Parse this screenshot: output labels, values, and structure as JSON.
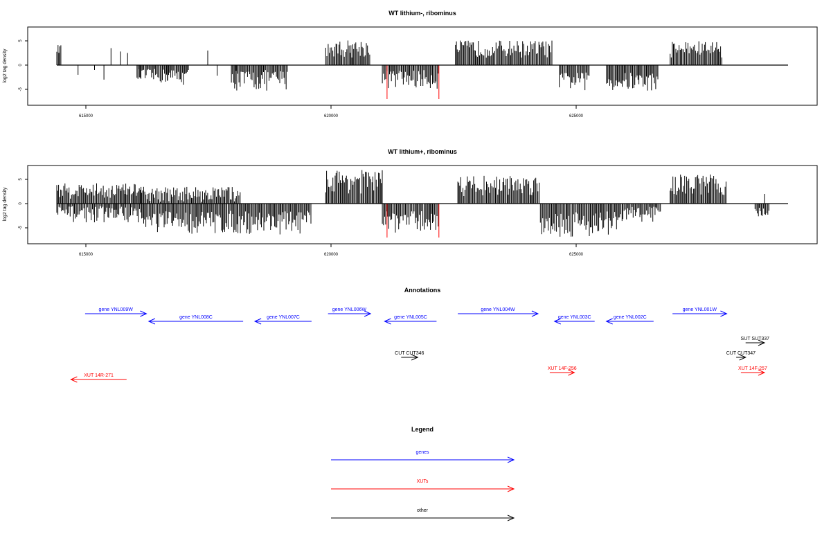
{
  "chart_data": [
    {
      "type": "bar",
      "title": "WT lithium-, ribominus",
      "ylabel": "log2 tag density",
      "xlim": [
        614300,
        629800
      ],
      "ylim": [
        -7.5,
        7.5
      ],
      "x_ticks": [
        615000,
        620000,
        625000
      ],
      "x_tick_labels": [
        "615000",
        "620000",
        "625000"
      ],
      "y_ticks": [
        -5,
        0,
        5
      ],
      "y_tick_labels": [
        "-5",
        "0",
        "5"
      ],
      "clusters": [
        {
          "from": 614300,
          "to": 614400,
          "min": 2.5,
          "max": 4.2,
          "sign": 1
        },
        {
          "from": 616000,
          "to": 616650,
          "min": -3.9,
          "max": -0.8,
          "sign": -1
        },
        {
          "from": 616650,
          "to": 617100,
          "min": -4.2,
          "max": -0.8,
          "sign": -1
        },
        {
          "from": 618000,
          "to": 619200,
          "min": -5.5,
          "max": -1.0,
          "sign": -1
        },
        {
          "from": 620000,
          "to": 620950,
          "min": 1.5,
          "max": 5.2,
          "sign": 1
        },
        {
          "from": 621200,
          "to": 622400,
          "min": -5.0,
          "max": -1.0,
          "sign": -1
        },
        {
          "from": 622750,
          "to": 624800,
          "min": 1.5,
          "max": 5.1,
          "sign": 1
        },
        {
          "from": 624950,
          "to": 625600,
          "min": -5.2,
          "max": -1.5,
          "sign": -1
        },
        {
          "from": 625950,
          "to": 627050,
          "min": -5.6,
          "max": -1.5,
          "sign": -1
        },
        {
          "from": 627300,
          "to": 628400,
          "min": 1.5,
          "max": 5.0,
          "sign": 1
        }
      ],
      "sparse_bars": [
        [
          614750,
          -2.0
        ],
        [
          615100,
          -1.0
        ],
        [
          615300,
          -3.0
        ],
        [
          615450,
          3.5
        ],
        [
          615650,
          2.8
        ],
        [
          615800,
          2.5
        ],
        [
          616050,
          -2.5
        ],
        [
          617500,
          3.0
        ],
        [
          617700,
          -2.2
        ],
        [
          618100,
          -1.2
        ]
      ],
      "highlights": [
        {
          "x": 621300,
          "y": -7.0
        },
        {
          "x": 622400,
          "y": -7.0
        }
      ],
      "highlight_color": "#ff0000"
    },
    {
      "type": "bar",
      "title": "WT lithium+, ribominus",
      "ylabel": "log2 tag density",
      "xlim": [
        614300,
        629800
      ],
      "ylim": [
        -7.5,
        7.5
      ],
      "x_ticks": [
        615000,
        620000,
        625000
      ],
      "x_tick_labels": [
        "615000",
        "620000",
        "625000"
      ],
      "y_ticks": [
        -5,
        0,
        5
      ],
      "y_tick_labels": [
        "-5",
        "0",
        "5"
      ],
      "clusters": [
        {
          "from": 614300,
          "to": 616100,
          "min": 1.0,
          "max": 4.2,
          "sign": 1
        },
        {
          "from": 614300,
          "to": 616100,
          "min": -4.0,
          "max": -0.5,
          "sign": -1
        },
        {
          "from": 616100,
          "to": 619700,
          "min": -6.5,
          "max": -1.5,
          "sign": -1
        },
        {
          "from": 616100,
          "to": 618200,
          "min": 0.3,
          "max": 3.5,
          "sign": 1
        },
        {
          "from": 620000,
          "to": 621200,
          "min": 2.0,
          "max": 7.0,
          "sign": 1
        },
        {
          "from": 621200,
          "to": 622400,
          "min": -6.0,
          "max": -1.5,
          "sign": -1
        },
        {
          "from": 622800,
          "to": 624550,
          "min": 1.5,
          "max": 5.8,
          "sign": 1
        },
        {
          "from": 624550,
          "to": 626300,
          "min": -7.0,
          "max": -1.5,
          "sign": -1
        },
        {
          "from": 626300,
          "to": 627100,
          "min": -4.0,
          "max": -0.5,
          "sign": -1
        },
        {
          "from": 627300,
          "to": 628500,
          "min": 1.5,
          "max": 6.0,
          "sign": 1
        },
        {
          "from": 629100,
          "to": 629400,
          "min": -3.0,
          "max": -0.8,
          "sign": -1
        }
      ],
      "sparse_bars": [
        [
          629300,
          2.0
        ]
      ],
      "highlights": [
        {
          "x": 621300,
          "y": -7.0
        },
        {
          "x": 622400,
          "y": -7.0
        }
      ],
      "highlight_color": "#ff0000"
    }
  ],
  "annotations": {
    "title": "Annotations",
    "items": [
      {
        "label": "gene YNL009W",
        "color": "#0000ff",
        "row": 0,
        "from": 614900,
        "to": 616200,
        "dir": "right"
      },
      {
        "label": "gene YNL008C",
        "color": "#0000ff",
        "row": 1,
        "from": 616250,
        "to": 618250,
        "dir": "left"
      },
      {
        "label": "gene YNL007C",
        "color": "#0000ff",
        "row": 1,
        "from": 618500,
        "to": 619700,
        "dir": "left"
      },
      {
        "label": "gene YNL006W",
        "color": "#0000ff",
        "row": 0,
        "from": 620050,
        "to": 620950,
        "dir": "right"
      },
      {
        "label": "gene YNL005C",
        "color": "#0000ff",
        "row": 1,
        "from": 621250,
        "to": 622350,
        "dir": "left"
      },
      {
        "label": "gene YNL004W",
        "color": "#0000ff",
        "row": 0,
        "from": 622800,
        "to": 624500,
        "dir": "right"
      },
      {
        "label": "gene YNL003C",
        "color": "#0000ff",
        "row": 1,
        "from": 624850,
        "to": 625700,
        "dir": "left"
      },
      {
        "label": "gene YNL002C",
        "color": "#0000ff",
        "row": 1,
        "from": 625950,
        "to": 626950,
        "dir": "left"
      },
      {
        "label": "gene YNL001W",
        "color": "#0000ff",
        "row": 0,
        "from": 627350,
        "to": 628500,
        "dir": "right"
      },
      {
        "label": "SUT SUT337",
        "color": "#000000",
        "row": 2,
        "from": 628900,
        "to": 629300,
        "dir": "right"
      },
      {
        "label": "CUT CUT346",
        "color": "#000000",
        "row": 3,
        "from": 621600,
        "to": 621950,
        "dir": "right"
      },
      {
        "label": "CUT CUT347",
        "color": "#000000",
        "row": 3,
        "from": 628700,
        "to": 628900,
        "dir": "right"
      },
      {
        "label": "XUT 14F-256",
        "color": "#ff0000",
        "row": 4,
        "from": 624750,
        "to": 625270,
        "dir": "right"
      },
      {
        "label": "XUT 14F-257",
        "color": "#ff0000",
        "row": 4,
        "from": 628800,
        "to": 629300,
        "dir": "right"
      },
      {
        "label": "XUT 14R-271",
        "color": "#ff0000",
        "row": 5,
        "from": 614600,
        "to": 615780,
        "dir": "left"
      }
    ]
  },
  "legend": {
    "title": "Legend",
    "items": [
      {
        "label": "genes",
        "color": "#0000ff"
      },
      {
        "label": "XUTs",
        "color": "#ff0000"
      },
      {
        "label": "other",
        "color": "#000000"
      }
    ]
  }
}
